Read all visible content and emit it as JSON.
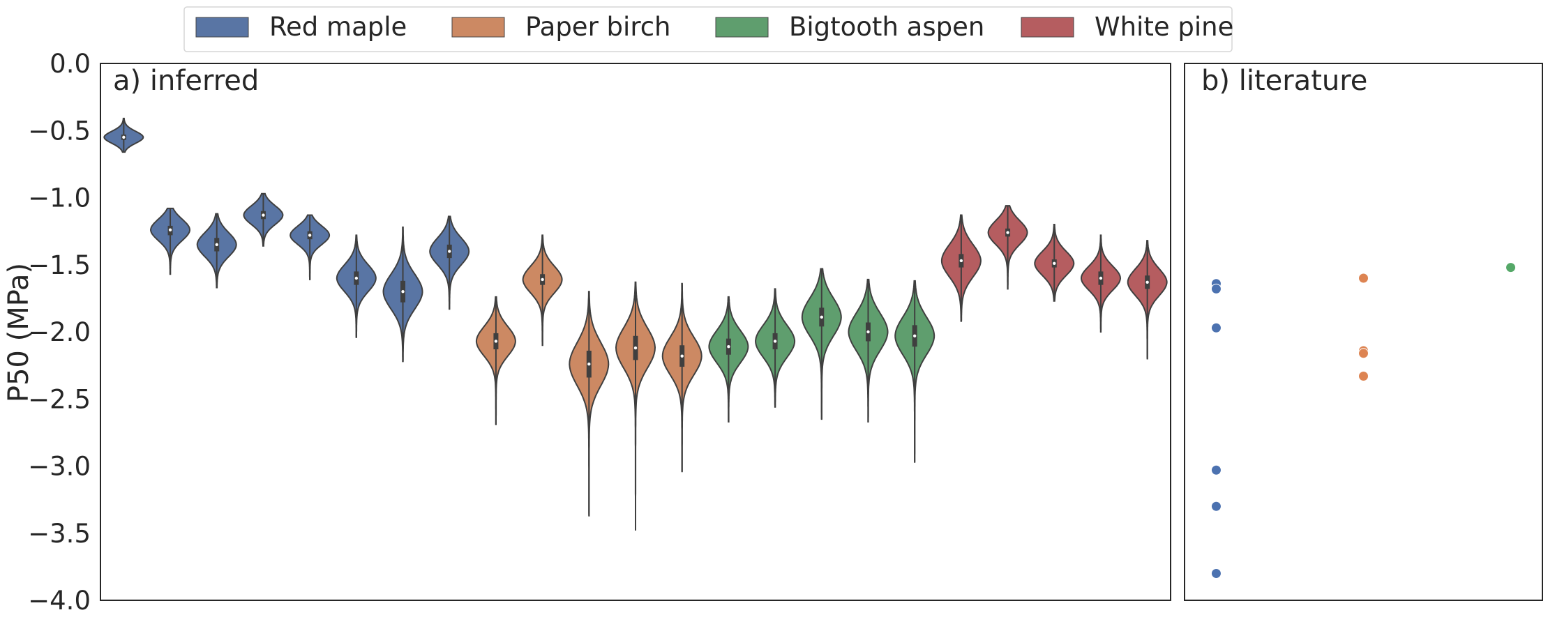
{
  "chart_data": [
    {
      "type": "violin",
      "title": "a) inferred",
      "xlabel": "",
      "ylabel": "P50 (MPa)",
      "ylim": [
        -4.0,
        0.0
      ],
      "yticks": [
        0.0,
        -0.5,
        -1.0,
        -1.5,
        -2.0,
        -2.5,
        -3.0,
        -3.5,
        -4.0
      ],
      "ytick_labels": [
        "0.0",
        "−0.5",
        "−1.0",
        "−1.5",
        "−2.0",
        "−2.5",
        "−3.0",
        "−3.5",
        "−4.0"
      ],
      "grid": false,
      "violins": [
        {
          "series": "Red maple",
          "median": -0.55,
          "q1": -0.57,
          "q3": -0.53,
          "min": -0.66,
          "max": -0.41,
          "spread": 0.045
        },
        {
          "series": "Red maple",
          "median": -1.24,
          "q1": -1.28,
          "q3": -1.21,
          "min": -1.57,
          "max": -1.08,
          "spread": 0.08
        },
        {
          "series": "Red maple",
          "median": -1.35,
          "q1": -1.4,
          "q3": -1.3,
          "min": -1.67,
          "max": -1.12,
          "spread": 0.09
        },
        {
          "series": "Red maple",
          "median": -1.13,
          "q1": -1.16,
          "q3": -1.1,
          "min": -1.36,
          "max": -0.97,
          "spread": 0.07
        },
        {
          "series": "Red maple",
          "median": -1.28,
          "q1": -1.31,
          "q3": -1.25,
          "min": -1.61,
          "max": -1.13,
          "spread": 0.07
        },
        {
          "series": "Red maple",
          "median": -1.6,
          "q1": -1.65,
          "q3": -1.55,
          "min": -2.04,
          "max": -1.28,
          "spread": 0.1
        },
        {
          "series": "Red maple",
          "median": -1.7,
          "q1": -1.78,
          "q3": -1.62,
          "min": -2.22,
          "max": -1.22,
          "spread": 0.13
        },
        {
          "series": "Red maple",
          "median": -1.4,
          "q1": -1.45,
          "q3": -1.35,
          "min": -1.83,
          "max": -1.14,
          "spread": 0.1
        },
        {
          "series": "Paper birch",
          "median": -2.07,
          "q1": -2.13,
          "q3": -2.01,
          "min": -2.69,
          "max": -1.74,
          "spread": 0.11
        },
        {
          "series": "Paper birch",
          "median": -1.61,
          "q1": -1.65,
          "q3": -1.57,
          "min": -2.1,
          "max": -1.28,
          "spread": 0.1
        },
        {
          "series": "Paper birch",
          "median": -2.24,
          "q1": -2.34,
          "q3": -2.14,
          "min": -3.37,
          "max": -1.7,
          "spread": 0.16
        },
        {
          "series": "Paper birch",
          "median": -2.12,
          "q1": -2.21,
          "q3": -2.03,
          "min": -3.48,
          "max": -1.63,
          "spread": 0.15
        },
        {
          "series": "Paper birch",
          "median": -2.18,
          "q1": -2.26,
          "q3": -2.1,
          "min": -3.04,
          "max": -1.64,
          "spread": 0.14
        },
        {
          "series": "Bigtooth aspen",
          "median": -2.11,
          "q1": -2.17,
          "q3": -2.05,
          "min": -2.67,
          "max": -1.74,
          "spread": 0.12
        },
        {
          "series": "Bigtooth aspen",
          "median": -2.07,
          "q1": -2.13,
          "q3": -2.01,
          "min": -2.56,
          "max": -1.68,
          "spread": 0.12
        },
        {
          "series": "Bigtooth aspen",
          "median": -1.89,
          "q1": -1.96,
          "q3": -1.82,
          "min": -2.65,
          "max": -1.53,
          "spread": 0.14
        },
        {
          "series": "Bigtooth aspen",
          "median": -2.0,
          "q1": -2.07,
          "q3": -1.93,
          "min": -2.67,
          "max": -1.61,
          "spread": 0.14
        },
        {
          "series": "Bigtooth aspen",
          "median": -2.03,
          "q1": -2.11,
          "q3": -1.95,
          "min": -2.97,
          "max": -1.62,
          "spread": 0.14
        },
        {
          "series": "White pine",
          "median": -1.47,
          "q1": -1.52,
          "q3": -1.42,
          "min": -1.92,
          "max": -1.13,
          "spread": 0.12
        },
        {
          "series": "White pine",
          "median": -1.26,
          "q1": -1.29,
          "q3": -1.23,
          "min": -1.68,
          "max": -1.06,
          "spread": 0.09
        },
        {
          "series": "White pine",
          "median": -1.49,
          "q1": -1.52,
          "q3": -1.46,
          "min": -1.77,
          "max": -1.2,
          "spread": 0.09
        },
        {
          "series": "White pine",
          "median": -1.6,
          "q1": -1.65,
          "q3": -1.55,
          "min": -2.0,
          "max": -1.28,
          "spread": 0.09
        },
        {
          "series": "White pine",
          "median": -1.63,
          "q1": -1.68,
          "q3": -1.58,
          "min": -2.2,
          "max": -1.32,
          "spread": 0.1
        }
      ]
    },
    {
      "type": "scatter",
      "title": "b) literature",
      "ylim": [
        -4.0,
        0.0
      ],
      "xlim": [
        0,
        1
      ],
      "grid": false,
      "series": [
        {
          "name": "Red maple",
          "x": [
            0.05,
            0.05,
            0.05,
            0.05,
            0.05,
            0.05
          ],
          "y": [
            -1.64,
            -1.68,
            -1.97,
            -3.03,
            -3.3,
            -3.8
          ]
        },
        {
          "name": "Paper birch",
          "x": [
            0.5,
            0.5,
            0.5,
            0.5
          ],
          "y": [
            -1.6,
            -2.14,
            -2.16,
            -2.33
          ]
        },
        {
          "name": "Bigtooth aspen",
          "x": [
            0.95
          ],
          "y": [
            -1.52
          ]
        }
      ]
    }
  ],
  "legend": {
    "placement": "top-center",
    "items": [
      {
        "label": "Red maple",
        "color": "#5975a4"
      },
      {
        "label": "Paper birch",
        "color": "#cc8963"
      },
      {
        "label": "Bigtooth aspen",
        "color": "#5f9e6e"
      },
      {
        "label": "White pine",
        "color": "#b55d60"
      }
    ]
  },
  "colors": {
    "Red maple": "#5975a4",
    "Paper birch": "#cc8963",
    "Bigtooth aspen": "#5f9e6e",
    "White pine": "#b55d60",
    "Red maple point": "#4c72b0",
    "Paper birch point": "#dd8452",
    "Bigtooth aspen point": "#55a868",
    "White pine point": "#c44e52"
  }
}
